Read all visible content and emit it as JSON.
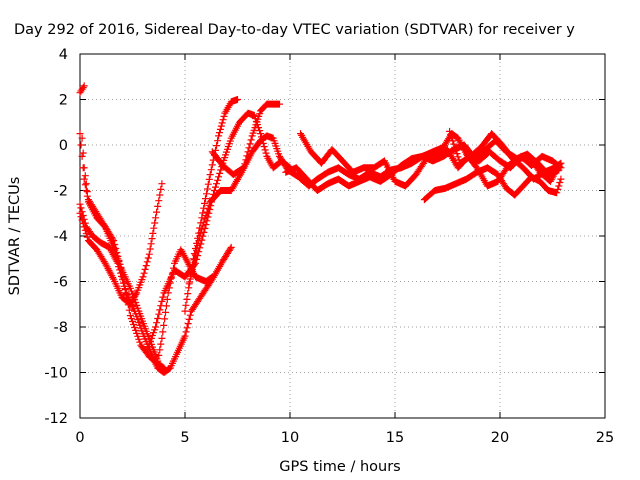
{
  "chart_data": {
    "type": "scatter",
    "title": "Day 292 of 2016, Sidereal Day-to-day VTEC variation (SDTVAR) for receiver y",
    "xlabel": "GPS time / hours",
    "ylabel": "SDTVAR / TECUs",
    "xlim": [
      0,
      25
    ],
    "ylim": [
      -12,
      4
    ],
    "xticks": [
      "0",
      "5",
      "10",
      "15",
      "20",
      "25"
    ],
    "yticks": [
      "-12",
      "-10",
      "-8",
      "-6",
      "-4",
      "-2",
      "0",
      "2",
      "4"
    ],
    "grid": true,
    "marker": "plus",
    "color": "#ff0000",
    "tracks": [
      [
        [
          0.0,
          2.3
        ],
        [
          0.2,
          2.6
        ]
      ],
      [
        [
          0.0,
          0.5
        ],
        [
          0.1,
          -0.5
        ],
        [
          0.2,
          -1.5
        ],
        [
          0.4,
          -2.5
        ],
        [
          0.8,
          -3.2
        ],
        [
          1.2,
          -3.6
        ],
        [
          1.6,
          -4.5
        ],
        [
          2.0,
          -5.5
        ],
        [
          2.4,
          -6.3
        ],
        [
          2.8,
          -7.3
        ],
        [
          3.2,
          -8.3
        ],
        [
          3.5,
          -9.0
        ],
        [
          3.7,
          -9.5
        ],
        [
          3.9,
          -8.5
        ],
        [
          4.2,
          -6.5
        ],
        [
          4.5,
          -5.2
        ],
        [
          4.8,
          -4.6
        ],
        [
          5.1,
          -5.1
        ],
        [
          5.5,
          -5.8
        ],
        [
          6.0,
          -6.0
        ],
        [
          6.3,
          -5.8
        ]
      ],
      [
        [
          0.0,
          -2.6
        ],
        [
          0.3,
          -3.6
        ],
        [
          0.6,
          -4.0
        ],
        [
          1.0,
          -4.3
        ],
        [
          1.4,
          -4.5
        ],
        [
          1.8,
          -5.2
        ],
        [
          2.2,
          -6.5
        ],
        [
          2.6,
          -7.3
        ],
        [
          3.0,
          -8.3
        ],
        [
          3.4,
          -9.2
        ],
        [
          3.7,
          -9.8
        ],
        [
          4.0,
          -10.0
        ],
        [
          4.3,
          -9.8
        ],
        [
          4.6,
          -9.2
        ],
        [
          5.0,
          -8.4
        ],
        [
          5.3,
          -7.3
        ],
        [
          5.8,
          -6.6
        ],
        [
          6.3,
          -5.9
        ],
        [
          6.8,
          -5.1
        ],
        [
          7.2,
          -4.5
        ]
      ],
      [
        [
          0.0,
          -3.0
        ],
        [
          0.4,
          -4.2
        ],
        [
          0.8,
          -4.6
        ],
        [
          1.2,
          -5.2
        ],
        [
          1.6,
          -5.9
        ],
        [
          2.0,
          -6.7
        ],
        [
          2.4,
          -7.0
        ],
        [
          2.7,
          -6.5
        ],
        [
          3.0,
          -5.8
        ],
        [
          3.3,
          -4.8
        ],
        [
          3.6,
          -3.2
        ],
        [
          3.9,
          -1.7
        ]
      ],
      [
        [
          0.1,
          0.3
        ],
        [
          0.2,
          -1.0
        ],
        [
          0.4,
          -2.4
        ],
        [
          0.8,
          -3.0
        ],
        [
          1.2,
          -3.6
        ],
        [
          1.6,
          -4.2
        ],
        [
          2.0,
          -5.6
        ],
        [
          2.4,
          -7.5
        ],
        [
          2.9,
          -8.8
        ],
        [
          3.3,
          -9.3
        ],
        [
          3.7,
          -9.6
        ],
        [
          4.0,
          -9.8
        ]
      ],
      [
        [
          3.2,
          -9.0
        ],
        [
          3.6,
          -8.0
        ],
        [
          4.0,
          -6.5
        ],
        [
          4.5,
          -5.5
        ],
        [
          5.0,
          -5.8
        ],
        [
          5.5,
          -5.2
        ],
        [
          6.0,
          -3.5
        ],
        [
          6.4,
          -2.0
        ],
        [
          6.8,
          -0.8
        ],
        [
          7.2,
          0.3
        ],
        [
          7.6,
          1.0
        ],
        [
          8.0,
          1.4
        ],
        [
          8.3,
          1.3
        ],
        [
          8.6,
          0.5
        ],
        [
          8.9,
          -0.5
        ],
        [
          9.2,
          -1.0
        ],
        [
          9.6,
          -0.7
        ],
        [
          10.0,
          -1.0
        ]
      ],
      [
        [
          5.0,
          -7.3
        ],
        [
          5.4,
          -5.0
        ],
        [
          5.8,
          -3.2
        ],
        [
          6.2,
          -1.3
        ],
        [
          6.6,
          0.4
        ],
        [
          6.9,
          1.4
        ],
        [
          7.2,
          1.9
        ],
        [
          7.5,
          2.0
        ]
      ],
      [
        [
          6.3,
          -0.3
        ],
        [
          6.8,
          -0.9
        ],
        [
          7.3,
          -1.3
        ],
        [
          7.8,
          -1.0
        ],
        [
          8.2,
          0.4
        ],
        [
          8.6,
          1.5
        ],
        [
          8.9,
          1.8
        ],
        [
          9.2,
          1.8
        ],
        [
          9.5,
          1.8
        ]
      ],
      [
        [
          5.2,
          -6.1
        ],
        [
          5.7,
          -4.0
        ],
        [
          6.2,
          -2.5
        ],
        [
          6.7,
          -2.0
        ],
        [
          7.2,
          -2.0
        ],
        [
          7.7,
          -1.2
        ],
        [
          8.2,
          -0.3
        ],
        [
          8.6,
          0.2
        ],
        [
          8.9,
          0.4
        ],
        [
          9.2,
          0.3
        ],
        [
          9.5,
          -0.5
        ],
        [
          9.9,
          -1.1
        ],
        [
          10.4,
          -1.4
        ],
        [
          10.9,
          -1.8
        ],
        [
          11.3,
          -1.5
        ],
        [
          11.8,
          -1.2
        ],
        [
          12.3,
          -1.0
        ],
        [
          12.8,
          -1.3
        ],
        [
          13.3,
          -1.5
        ],
        [
          13.8,
          -1.2
        ],
        [
          14.3,
          -1.4
        ],
        [
          14.8,
          -1.1
        ],
        [
          15.3,
          -1.0
        ],
        [
          15.8,
          -0.8
        ],
        [
          16.3,
          -0.5
        ],
        [
          16.8,
          -0.7
        ],
        [
          17.3,
          -0.5
        ],
        [
          17.8,
          -0.2
        ],
        [
          18.3,
          0.0
        ],
        [
          18.8,
          -0.6
        ],
        [
          19.3,
          -0.2
        ],
        [
          19.8,
          0.2
        ],
        [
          20.3,
          -0.3
        ],
        [
          20.8,
          -0.6
        ],
        [
          21.3,
          -0.4
        ],
        [
          21.8,
          -0.8
        ],
        [
          22.3,
          -1.3
        ],
        [
          22.8,
          -1.1
        ]
      ],
      [
        [
          10.5,
          0.5
        ],
        [
          11.0,
          -0.3
        ],
        [
          11.5,
          -0.8
        ],
        [
          12.0,
          -0.2
        ],
        [
          12.5,
          -0.7
        ],
        [
          13.0,
          -1.2
        ],
        [
          13.5,
          -1.0
        ],
        [
          14.0,
          -1.0
        ],
        [
          14.5,
          -0.7
        ],
        [
          15.0,
          -1.6
        ],
        [
          15.5,
          -1.8
        ],
        [
          16.0,
          -1.3
        ],
        [
          16.5,
          -0.6
        ],
        [
          17.0,
          -0.4
        ],
        [
          17.5,
          -0.2
        ],
        [
          18.0,
          -1.0
        ],
        [
          18.5,
          -0.5
        ],
        [
          19.0,
          -0.7
        ],
        [
          19.5,
          -0.3
        ],
        [
          20.0,
          -0.7
        ],
        [
          20.5,
          -1.0
        ],
        [
          21.0,
          -0.5
        ],
        [
          21.5,
          -0.9
        ],
        [
          22.0,
          -0.5
        ],
        [
          22.5,
          -0.7
        ],
        [
          22.9,
          -1.0
        ]
      ],
      [
        [
          9.8,
          -1.2
        ],
        [
          10.3,
          -1.0
        ],
        [
          10.8,
          -1.5
        ],
        [
          11.3,
          -2.0
        ],
        [
          11.8,
          -1.7
        ],
        [
          12.3,
          -1.5
        ],
        [
          12.8,
          -1.8
        ],
        [
          13.3,
          -1.6
        ],
        [
          13.8,
          -1.4
        ],
        [
          14.3,
          -1.6
        ],
        [
          14.8,
          -1.3
        ],
        [
          15.3,
          -0.9
        ],
        [
          15.8,
          -0.6
        ],
        [
          16.3,
          -0.5
        ],
        [
          16.8,
          -0.3
        ],
        [
          17.3,
          -0.1
        ],
        [
          17.7,
          0.5
        ],
        [
          18.0,
          0.3
        ],
        [
          18.4,
          -0.4
        ],
        [
          18.9,
          -1.0
        ],
        [
          19.4,
          -1.8
        ],
        [
          19.9,
          -1.6
        ],
        [
          20.4,
          -0.9
        ],
        [
          20.9,
          -0.6
        ],
        [
          21.4,
          -0.5
        ],
        [
          21.9,
          -1.2
        ],
        [
          22.4,
          -1.6
        ],
        [
          22.8,
          -0.9
        ]
      ],
      [
        [
          16.4,
          -2.4
        ],
        [
          16.9,
          -2.0
        ],
        [
          17.4,
          -1.9
        ],
        [
          17.9,
          -1.7
        ],
        [
          18.4,
          -1.5
        ],
        [
          18.9,
          -1.2
        ],
        [
          19.4,
          -1.0
        ],
        [
          19.9,
          -1.3
        ],
        [
          20.3,
          -1.9
        ],
        [
          20.7,
          -2.2
        ],
        [
          21.1,
          -1.8
        ],
        [
          21.5,
          -1.4
        ],
        [
          21.9,
          -1.6
        ],
        [
          22.3,
          -2.0
        ],
        [
          22.7,
          -2.1
        ],
        [
          22.9,
          -1.5
        ]
      ],
      [
        [
          17.6,
          0.6
        ],
        [
          18.1,
          -0.8
        ],
        [
          18.6,
          -0.5
        ],
        [
          19.1,
          -0.1
        ],
        [
          19.6,
          0.5
        ],
        [
          20.1,
          0.0
        ],
        [
          20.6,
          -0.6
        ],
        [
          21.1,
          -1.0
        ],
        [
          21.6,
          -1.5
        ],
        [
          22.1,
          -1.2
        ],
        [
          22.6,
          -1.0
        ],
        [
          22.9,
          -0.8
        ]
      ]
    ]
  }
}
